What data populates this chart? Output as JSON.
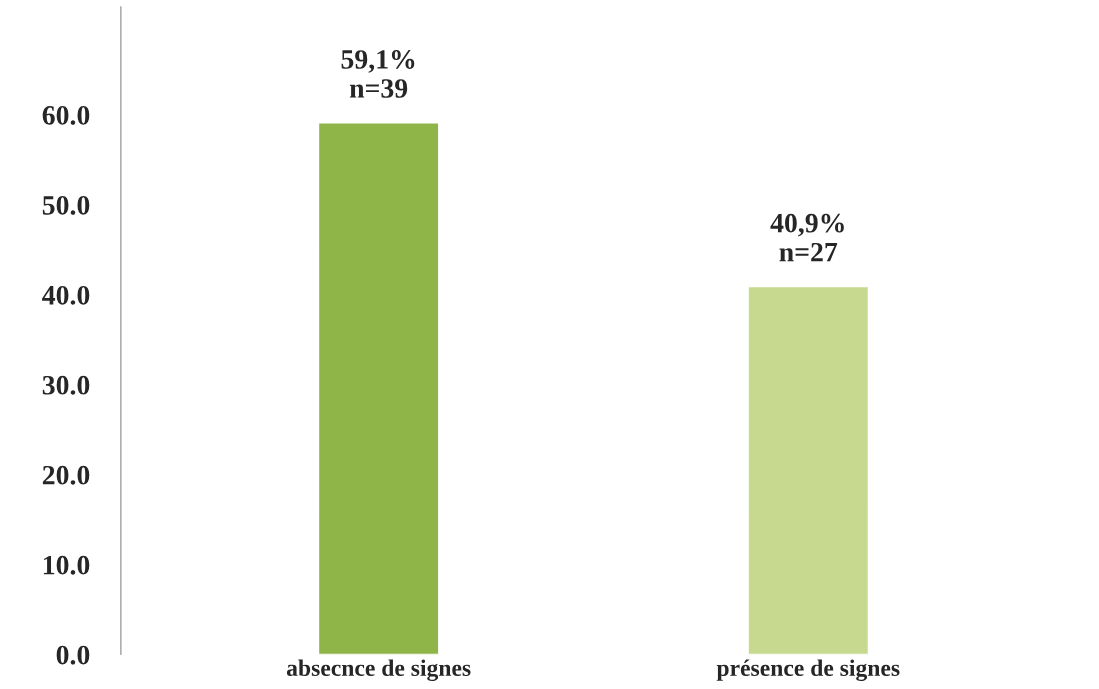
{
  "chart_data": {
    "type": "bar",
    "categories": [
      "absecnce de signes",
      "présence de signes"
    ],
    "values": [
      59.1,
      40.9
    ],
    "colors": [
      "#8fb548",
      "#c6d98f"
    ],
    "value_labels": [
      "59,1%\nn=39",
      "40,9%\nn=27"
    ],
    "ylim": [
      0,
      72
    ],
    "yticks": [
      {
        "value": 0,
        "label": "0.0"
      },
      {
        "value": 10,
        "label": "10.0"
      },
      {
        "value": 20,
        "label": "20.0"
      },
      {
        "value": 30,
        "label": "30.0"
      },
      {
        "value": 40,
        "label": "40.0"
      },
      {
        "value": 50,
        "label": "50.0"
      },
      {
        "value": 60,
        "label": "60.0"
      }
    ],
    "grid": false,
    "legend": false
  }
}
